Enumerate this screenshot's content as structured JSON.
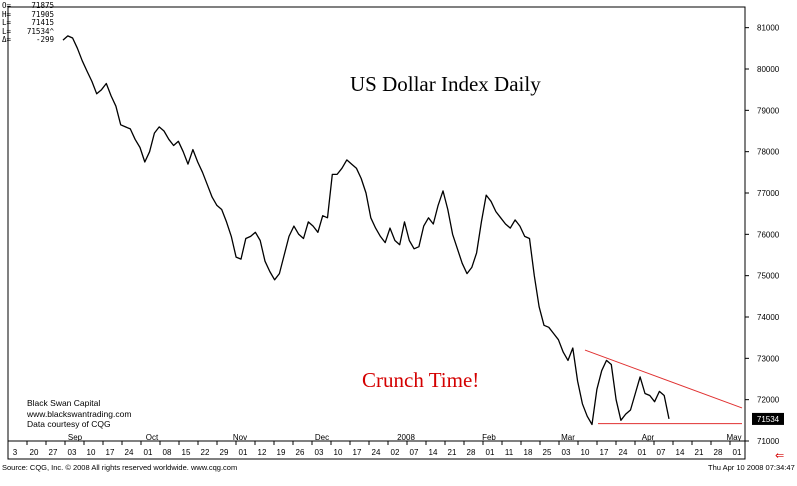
{
  "ohlc": [
    {
      "key": "O=",
      "value": "71875"
    },
    {
      "key": "H=",
      "value": "71905"
    },
    {
      "key": "L=",
      "value": "71415"
    },
    {
      "key": "L=",
      "value": "71534^"
    },
    {
      "key": "Δ=",
      "value": "-299"
    }
  ],
  "credits": [
    "Black Swan Capital",
    "www.blackswantrading.com",
    "Data courtesy of CQG"
  ],
  "footer": {
    "source": "Source: CQG, Inc. © 2008 All rights reserved worldwide. www.cqg.com",
    "timestamp": "Thu Apr 10 2008 07:34:47"
  },
  "nav_arrow": "⇐",
  "chart_data": {
    "type": "line",
    "title": "US Dollar Index Daily",
    "annotation": "Crunch Time!",
    "last_value_label": "71534",
    "ylim": [
      71000,
      81500
    ],
    "y_ticks": [
      71000,
      72000,
      73000,
      74000,
      75000,
      76000,
      77000,
      78000,
      79000,
      80000,
      81000
    ],
    "y_tick_labels": [
      "71000",
      "72000",
      "73000",
      "74000",
      "75000",
      "76000",
      "77000",
      "78000",
      "79000",
      "80000",
      "81000"
    ],
    "x_day_labels": [
      "3",
      "20",
      "27",
      "03",
      "10",
      "17",
      "24",
      "01",
      "08",
      "15",
      "22",
      "29",
      "01",
      "12",
      "19",
      "26",
      "03",
      "10",
      "17",
      "24",
      "02",
      "07",
      "14",
      "21",
      "28",
      "01",
      "11",
      "18",
      "25",
      "03",
      "10",
      "17",
      "24",
      "01",
      "07",
      "14",
      "21",
      "28",
      "01"
    ],
    "x_month_labels": [
      "Sep",
      "Oct",
      "Nov",
      "Dec",
      "2008",
      "Feb",
      "Mar",
      "Apr",
      "May"
    ],
    "series": [
      {
        "values": [
          80700,
          80800,
          80750,
          80500,
          80200,
          79950,
          79700,
          79400,
          79500,
          79650,
          79350,
          79100,
          78650,
          78600,
          78550,
          78300,
          78100,
          77750,
          78000,
          78450,
          78600,
          78500,
          78300,
          78150,
          78250,
          78000,
          77700,
          78050,
          77750,
          77500,
          77200,
          76900,
          76700,
          76600,
          76300,
          75950,
          75450,
          75400,
          75900,
          75950,
          76050,
          75850,
          75350,
          75100,
          74900,
          75050,
          75500,
          75950,
          76200,
          76000,
          75900,
          76300,
          76200,
          76050,
          76450,
          76400,
          77450,
          77450,
          77600,
          77800,
          77700,
          77600,
          77350,
          77000,
          76400,
          76150,
          75950,
          75800,
          76150,
          75850,
          75750,
          76300,
          75850,
          75650,
          75700,
          76200,
          76400,
          76250,
          76700,
          77050,
          76600,
          76000,
          75650,
          75300,
          75050,
          75200,
          75550,
          76300,
          76950,
          76800,
          76550,
          76400,
          76250,
          76150,
          76350,
          76200,
          75950,
          75900,
          75000,
          74250,
          73800,
          73750,
          73600,
          73450,
          73150,
          72950,
          73250,
          72450,
          71900,
          71600,
          71400,
          72250,
          72700,
          72950,
          72850,
          72000,
          71500,
          71650,
          71750,
          72150,
          72550,
          72150,
          72100,
          71950,
          72200,
          72100,
          71534
        ]
      }
    ],
    "resistance_line": {
      "x": [
        109,
        125
      ],
      "y": [
        73200,
        71800
      ]
    },
    "support_line": {
      "x": [
        110,
        128
      ],
      "y": [
        71420,
        71420
      ]
    }
  }
}
